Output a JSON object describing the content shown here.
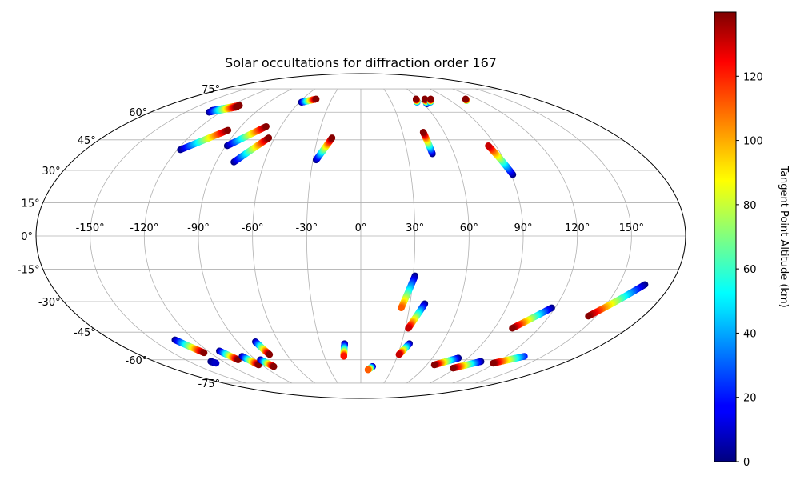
{
  "chart_data": {
    "type": "scatter",
    "projection": "mollweide",
    "title": "Solar occultations for diffraction order 167",
    "grid": true,
    "lon_ticks": [
      -150,
      -120,
      -90,
      -60,
      -30,
      0,
      30,
      60,
      90,
      120,
      150
    ],
    "lon_tick_labels": [
      "-150°",
      "-120°",
      "-90°",
      "-60°",
      "-30°",
      "0°",
      "30°",
      "60°",
      "90°",
      "120°",
      "150°"
    ],
    "lat_ticks": [
      75,
      60,
      45,
      30,
      15,
      0,
      -15,
      -30,
      -45,
      -60,
      -75
    ],
    "lat_tick_labels": [
      "75°",
      "60°",
      "45°",
      "30°",
      "15°",
      "0°",
      "-15°",
      "-30°",
      "-45°",
      "-60°",
      "-75°"
    ],
    "colorbar": {
      "label": "Tangent Point Altitude (km)",
      "colormap": "jet",
      "range": [
        0,
        140
      ],
      "ticks": [
        0,
        20,
        40,
        60,
        80,
        100,
        120
      ],
      "tick_labels": [
        "0",
        "20",
        "40",
        "60",
        "80",
        "100",
        "120"
      ]
    },
    "series": [
      {
        "start": {
          "lon": -134,
          "lat": -49,
          "alt": 0
        },
        "end": {
          "lon": -125,
          "lat": -56,
          "alt": 139
        }
      },
      {
        "start": {
          "lon": -131,
          "lat": -61,
          "alt": 0
        },
        "end": {
          "lon": -129,
          "lat": -62,
          "alt": 10
        }
      },
      {
        "start": {
          "lon": -111,
          "lat": -55,
          "alt": 0
        },
        "end": {
          "lon": -105,
          "lat": -60,
          "alt": 139
        }
      },
      {
        "start": {
          "lon": -98,
          "lat": -58,
          "alt": 0
        },
        "end": {
          "lon": -93,
          "lat": -63,
          "alt": 139
        }
      },
      {
        "start": {
          "lon": -86,
          "lat": -60,
          "alt": 0
        },
        "end": {
          "lon": -81,
          "lat": -64,
          "alt": 139
        }
      },
      {
        "start": {
          "lon": -77,
          "lat": -50,
          "alt": 0
        },
        "end": {
          "lon": -74,
          "lat": -57,
          "alt": 139
        }
      },
      {
        "start": {
          "lon": -12,
          "lat": -51,
          "alt": 0
        },
        "end": {
          "lon": -14,
          "lat": -58,
          "alt": 120
        }
      },
      {
        "start": {
          "lon": 11,
          "lat": -64,
          "alt": 0
        },
        "end": {
          "lon": 7,
          "lat": -66,
          "alt": 110
        }
      },
      {
        "start": {
          "lon": 31,
          "lat": -18,
          "alt": 0
        },
        "end": {
          "lon": 25,
          "lat": -33,
          "alt": 110
        }
      },
      {
        "start": {
          "lon": 39,
          "lat": -31,
          "alt": 0
        },
        "end": {
          "lon": 32,
          "lat": -43,
          "alt": 130
        }
      },
      {
        "start": {
          "lon": 36,
          "lat": -51,
          "alt": 0
        },
        "end": {
          "lon": 31,
          "lat": -57,
          "alt": 130
        }
      },
      {
        "start": {
          "lon": 82,
          "lat": -59,
          "alt": 0
        },
        "end": {
          "lon": 67,
          "lat": -63,
          "alt": 139
        }
      },
      {
        "start": {
          "lon": 105,
          "lat": -61,
          "alt": 0
        },
        "end": {
          "lon": 88,
          "lat": -65,
          "alt": 139
        }
      },
      {
        "start": {
          "lon": 118,
          "lat": -33,
          "alt": 0
        },
        "end": {
          "lon": 102,
          "lat": -43,
          "alt": 139
        }
      },
      {
        "start": {
          "lon": 135,
          "lat": -58,
          "alt": 20
        },
        "end": {
          "lon": 118,
          "lat": -62,
          "alt": 139
        }
      },
      {
        "start": {
          "lon": 165,
          "lat": -22,
          "alt": 0
        },
        "end": {
          "lon": 145,
          "lat": -37,
          "alt": 139
        }
      },
      {
        "start": {
          "lon": -130,
          "lat": 61,
          "alt": 0
        },
        "end": {
          "lon": -113,
          "lat": 64,
          "alt": 139
        }
      },
      {
        "start": {
          "lon": -130,
          "lat": 60,
          "alt": 0
        },
        "end": {
          "lon": -113,
          "lat": 63,
          "alt": 139
        }
      },
      {
        "start": {
          "lon": -118,
          "lat": 40,
          "alt": 0
        },
        "end": {
          "lon": -97,
          "lat": 50,
          "alt": 139
        }
      },
      {
        "start": {
          "lon": -89,
          "lat": 42,
          "alt": 0
        },
        "end": {
          "lon": -71,
          "lat": 52,
          "alt": 139
        }
      },
      {
        "start": {
          "lon": -79,
          "lat": 34,
          "alt": 0
        },
        "end": {
          "lon": -64,
          "lat": 46,
          "alt": 139
        }
      },
      {
        "start": {
          "lon": -58,
          "lat": 66,
          "alt": 0
        },
        "end": {
          "lon": -46,
          "lat": 68,
          "alt": 139
        }
      },
      {
        "start": {
          "lon": -28,
          "lat": 35,
          "alt": 0
        },
        "end": {
          "lon": -20,
          "lat": 46,
          "alt": 139
        }
      },
      {
        "start": {
          "lon": 46,
          "lat": 38,
          "alt": 0
        },
        "end": {
          "lon": 45,
          "lat": 49,
          "alt": 139
        }
      },
      {
        "start": {
          "lon": 91,
          "lat": 28,
          "alt": 0
        },
        "end": {
          "lon": 85,
          "lat": 42,
          "alt": 130
        }
      },
      {
        "start": {
          "lon": 55,
          "lat": 66,
          "alt": 30
        },
        "end": {
          "lon": 57,
          "lat": 68,
          "alt": 139
        }
      },
      {
        "start": {
          "lon": 63,
          "lat": 65,
          "alt": 0
        },
        "end": {
          "lon": 66,
          "lat": 68,
          "alt": 139
        }
      },
      {
        "start": {
          "lon": 68,
          "lat": 66,
          "alt": 30
        },
        "end": {
          "lon": 72,
          "lat": 68,
          "alt": 139
        }
      },
      {
        "start": {
          "lon": 106,
          "lat": 67,
          "alt": 60
        },
        "end": {
          "lon": 108,
          "lat": 68,
          "alt": 139
        }
      }
    ]
  }
}
